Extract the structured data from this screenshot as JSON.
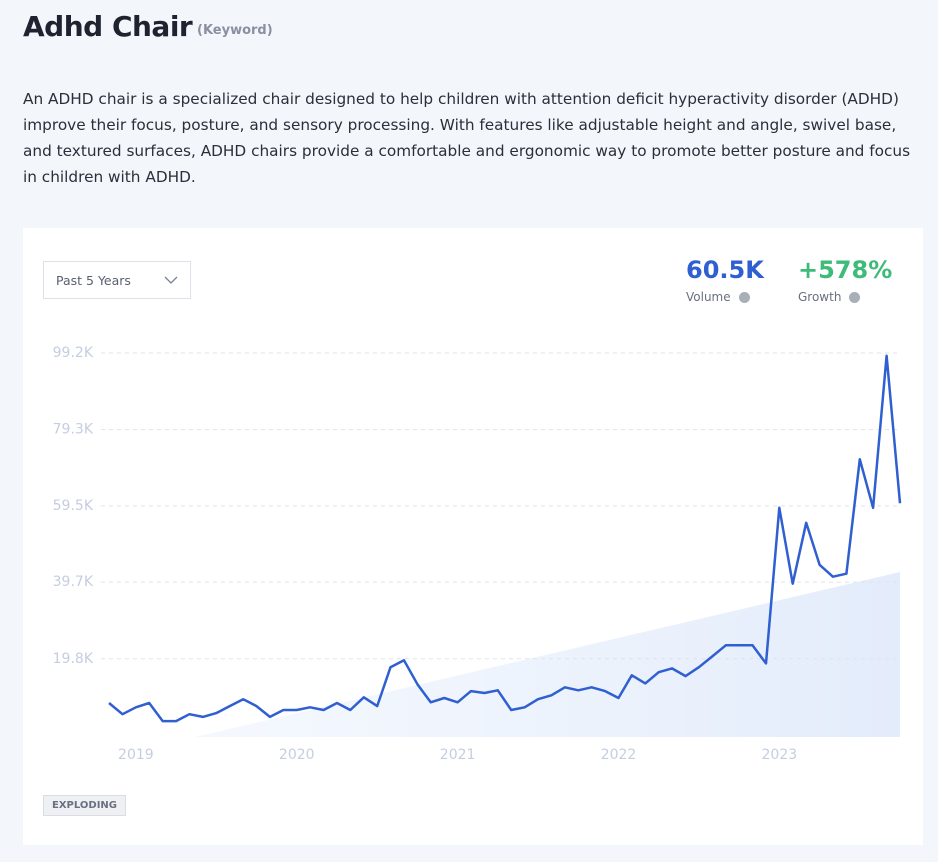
{
  "header": {
    "title": "Adhd Chair",
    "tag": "(Keyword)",
    "description": "An ADHD chair is a specialized chair designed to help children with attention deficit hyperactivity disorder (ADHD) improve their focus, posture, and sensory processing. With features like adjustable height and angle, swivel base, and textured surfaces, ADHD chairs provide a comfortable and ergonomic way to promote better posture and focus in children with ADHD."
  },
  "controls": {
    "range": "Past 5 Years"
  },
  "stats": [
    {
      "value": "60.5K",
      "label": "Volume"
    },
    {
      "value": "+578%",
      "label": "Growth"
    }
  ],
  "badge": "EXPLODING",
  "chart_data": {
    "type": "line",
    "x": [
      2018.833,
      2018.917,
      2019,
      2019.083,
      2019.167,
      2019.25,
      2019.333,
      2019.417,
      2019.5,
      2019.583,
      2019.667,
      2019.75,
      2019.833,
      2019.917,
      2020,
      2020.083,
      2020.167,
      2020.25,
      2020.333,
      2020.417,
      2020.5,
      2020.583,
      2020.667,
      2020.75,
      2020.833,
      2020.917,
      2021,
      2021.083,
      2021.167,
      2021.25,
      2021.333,
      2021.417,
      2021.5,
      2021.583,
      2021.667,
      2021.75,
      2021.833,
      2021.917,
      2022,
      2022.083,
      2022.167,
      2022.25,
      2022.333,
      2022.417,
      2022.5,
      2022.583,
      2022.667,
      2022.75,
      2022.833,
      2022.917,
      2023,
      2023.083,
      2023.167,
      2023.25,
      2023.333,
      2023.417,
      2023.5,
      2023.583,
      2023.667,
      2023.75
    ],
    "series": [
      {
        "color": "#2f5fd0",
        "values": [
          8300,
          5400,
          7200,
          8300,
          3600,
          3600,
          5400,
          4700,
          5700,
          7500,
          9300,
          7500,
          4700,
          6500,
          6500,
          7200,
          6500,
          8300,
          6500,
          9800,
          7500,
          17600,
          19400,
          13200,
          8500,
          9600,
          8500,
          11400,
          10900,
          11600,
          6500,
          7200,
          9300,
          10300,
          12400,
          11600,
          12400,
          11400,
          9600,
          15500,
          13400,
          16300,
          17300,
          15300,
          17600,
          20400,
          23300,
          23300,
          23300,
          18600,
          59000,
          39300,
          55100,
          44200,
          41100,
          41900,
          71600,
          59000,
          98500,
          60200
        ]
      }
    ],
    "xlim": [
      2018.833,
      2023.75
    ],
    "xticks": [
      2019,
      2020,
      2021,
      2022,
      2023
    ],
    "ylim": [
      0,
      99200
    ],
    "yticks": [
      {
        "value": 19800,
        "label": "19.8K"
      },
      {
        "value": 39700,
        "label": "39.7K"
      },
      {
        "value": 59500,
        "label": "59.5K"
      },
      {
        "value": 79300,
        "label": "79.3K"
      },
      {
        "value": 99200,
        "label": "99.2K"
      }
    ],
    "grid": true
  }
}
